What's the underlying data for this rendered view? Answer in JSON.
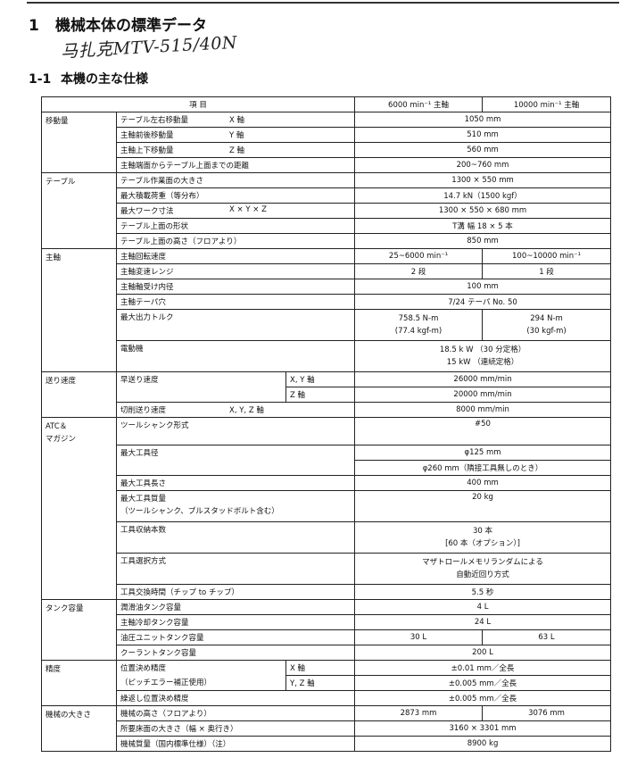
{
  "heading": {
    "number": "1",
    "text": "機械本体の標準データ"
  },
  "handwritten_note": "马扎克MTV-515/40N",
  "subheading": {
    "number": "1-1",
    "text": "本機の主な仕様"
  },
  "table": {
    "header": {
      "item": "項 目",
      "col1": "6000 min⁻¹ 主軸",
      "col2": "10000 min⁻¹ 主軸"
    },
    "travel": {
      "category": "移動量",
      "rows": [
        {
          "item": "テーブル左右移動量",
          "axis": "X 軸",
          "value": "1050 mm"
        },
        {
          "item": "主軸前後移動量",
          "axis": "Y 軸",
          "value": "510 mm"
        },
        {
          "item": "主軸上下移動量",
          "axis": "Z 軸",
          "value": "560 mm"
        },
        {
          "item": "主軸端面からテーブル上面までの距離",
          "value": "200~760 mm"
        }
      ]
    },
    "table_group": {
      "category": "テーブル",
      "rows": [
        {
          "item": "テーブル作業面の大きさ",
          "value": "1300 × 550 mm"
        },
        {
          "item": "最大積載荷重（等分布）",
          "value": "14.7 kN（1500 kgf）"
        },
        {
          "item": "最大ワーク寸法",
          "axis": "X × Y × Z",
          "value": "1300 × 550 × 680 mm"
        },
        {
          "item": "テーブル上面の形状",
          "value": "T溝 幅 18 × 5 本"
        },
        {
          "item": "テーブル上面の高さ（フロアより）",
          "value": "850 mm"
        }
      ]
    },
    "spindle": {
      "category": "主軸",
      "rows": [
        {
          "item": "主軸回転速度",
          "v1": "25~6000 min⁻¹",
          "v2": "100~10000 min⁻¹"
        },
        {
          "item": "主軸変速レンジ",
          "v1": "2 段",
          "v2": "1 段"
        },
        {
          "item": "主軸軸受け内径",
          "value": "100 mm"
        },
        {
          "item": "主軸テーパ穴",
          "value": "7/24 テーパ No. 50"
        },
        {
          "item": "最大出力トルク",
          "v1a": "758.5 N-m",
          "v1b": "(77.4 kgf-m)",
          "v2a": "294 N-m",
          "v2b": "(30 kgf-m)"
        },
        {
          "item": "電動機",
          "va": "18.5 k W （30 分定格）",
          "vb": "15 kW （連続定格）"
        }
      ]
    },
    "feed": {
      "category": "送り速度",
      "rows": [
        {
          "item": "早送り速度",
          "axis": "X, Y 軸",
          "value": "26000 mm/min"
        },
        {
          "axis": "Z 軸",
          "value": "20000 mm/min"
        },
        {
          "item": "切削送り速度",
          "axis": "X, Y, Z 軸",
          "value": "8000 mm/min"
        }
      ]
    },
    "atc": {
      "category_a": "ATC＆",
      "category_b": "マガジン",
      "rows": [
        {
          "item": "ツールシャンク形式",
          "value": "#50"
        },
        {
          "item": "最大工具径",
          "value_a": "φ125 mm",
          "value_b": "φ260 mm（隣接工具無しのとき）"
        },
        {
          "item": "最大工具長さ",
          "value": "400 mm"
        },
        {
          "item_a": "最大工具質量",
          "item_b": "（ツールシャンク、プルスタッドボルト含む）",
          "value": "20 kg"
        },
        {
          "item": "工具収納本数",
          "value_a": "30 本",
          "value_b": "[60 本（オプション）]"
        },
        {
          "item": "工具選択方式",
          "value_a": "マザトロールメモリランダムによる",
          "value_b": "自動近回り方式"
        },
        {
          "item": "工具交換時間（チップ to チップ）",
          "value": "5.5 秒"
        }
      ]
    },
    "tank": {
      "category": "タンク容量",
      "rows": [
        {
          "item": "潤滑油タンク容量",
          "value": "4 L"
        },
        {
          "item": "主軸冷却タンク容量",
          "value": "24 L"
        },
        {
          "item": "油圧ユニットタンク容量",
          "v1": "30 L",
          "v2": "63 L"
        },
        {
          "item": "クーラントタンク容量",
          "value": "200 L"
        }
      ]
    },
    "accuracy": {
      "category": "精度",
      "rows": [
        {
          "item_a": "位置決め精度",
          "item_b": "（ピッチエラー補正使用）",
          "axis": "X 軸",
          "value": "±0.01 mm／全長"
        },
        {
          "axis": "Y, Z 軸",
          "value": "±0.005 mm／全長"
        },
        {
          "item": "繰返し位置決め精度",
          "value": "±0.005 mm／全長"
        }
      ]
    },
    "size": {
      "category": "機械の大きさ",
      "rows": [
        {
          "item": "機械の高さ（フロアより）",
          "v1": "2873 mm",
          "v2": "3076 mm"
        },
        {
          "item": "所要床面の大きさ（幅 × 奥行き）",
          "value": "3160 × 3301 mm"
        },
        {
          "item": "機械質量（国内標準仕様）（注）",
          "value": "8900 kg"
        }
      ]
    }
  }
}
